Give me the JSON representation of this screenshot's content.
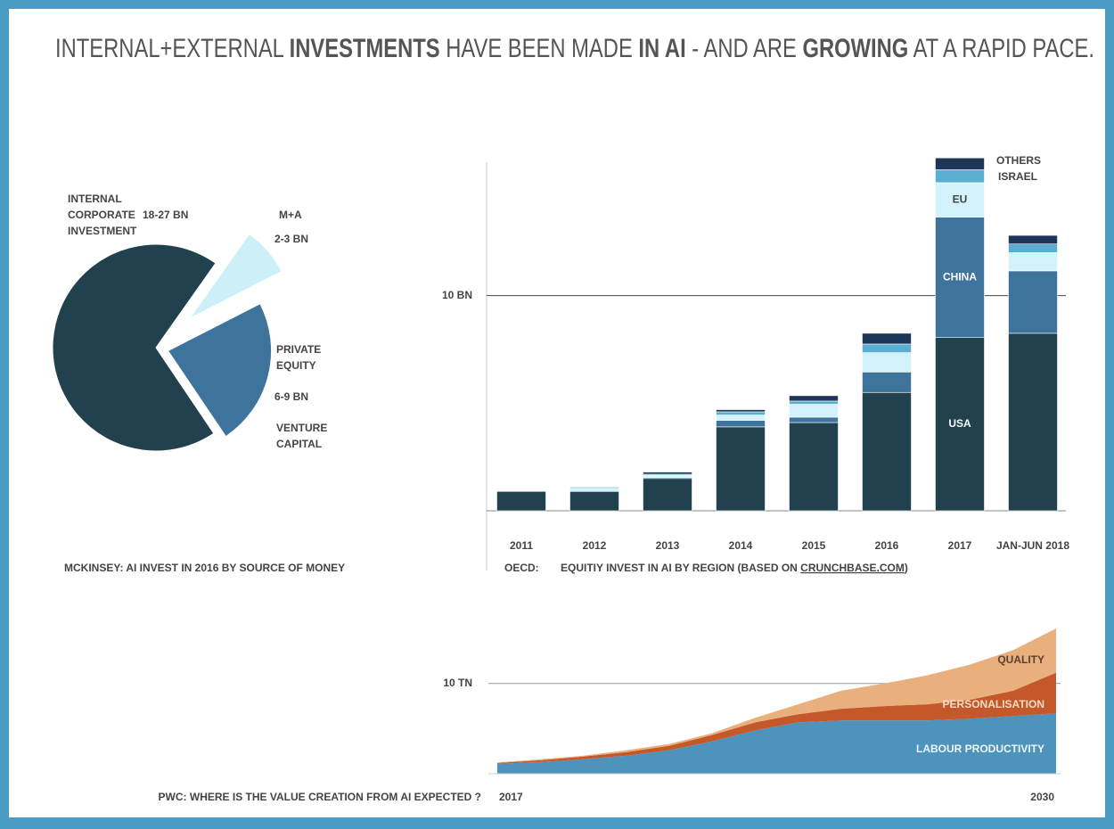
{
  "title": [
    {
      "text": "INTERNAL+EXTERNAL",
      "bold": false
    },
    {
      "text": "INVESTMENTS",
      "bold": true
    },
    {
      "text": "HAVE BEEN MADE",
      "bold": false
    },
    {
      "text": "IN AI",
      "bold": true
    },
    {
      "text": "- AND ARE",
      "bold": false
    },
    {
      "text": "GROWING",
      "bold": true
    },
    {
      "text": "AT A RAPID PACE.",
      "bold": false
    }
  ],
  "chart_data": [
    {
      "type": "pie",
      "categories": [
        "INTERNAL CORPORATE INVESTMENT",
        "M+A",
        "PRIVATE EQUITY"
      ],
      "values": [
        22.5,
        2.5,
        7.5
      ],
      "value_labels": [
        "18-27 BN",
        "2-3 BN",
        "6-9 BN"
      ],
      "colors": [
        "#21414f",
        "#cdeff8",
        "#3e739c"
      ],
      "annotations": [
        "VENTURE CAPITAL"
      ],
      "caption": "MCKINSEY: AI INVEST IN 2016 BY SOURCE OF MONEY"
    },
    {
      "type": "bar",
      "stacked": true,
      "categories": [
        "2011",
        "2012",
        "2013",
        "2014",
        "2015",
        "2016",
        "2017",
        "JAN-JUN 2018"
      ],
      "series": [
        {
          "name": "USA",
          "color": "#21414f",
          "values": [
            0.9,
            0.9,
            1.5,
            3.9,
            4.1,
            5.5,
            8.05,
            8.25
          ]
        },
        {
          "name": "CHINA",
          "color": "#3e739c",
          "values": [
            0,
            0,
            0.05,
            0.3,
            0.25,
            0.95,
            5.6,
            2.9
          ]
        },
        {
          "name": "EU",
          "color": "#d3f2fb",
          "values": [
            0,
            0.15,
            0.1,
            0.25,
            0.6,
            0.9,
            1.6,
            0.85
          ]
        },
        {
          "name": "ISRAEL",
          "color": "#5aaed0",
          "values": [
            0,
            0.05,
            0.05,
            0.15,
            0.15,
            0.4,
            0.6,
            0.4
          ]
        },
        {
          "name": "OTHERS",
          "color": "#1d3557",
          "values": [
            0,
            0,
            0.1,
            0.1,
            0.25,
            0.5,
            0.55,
            0.4
          ]
        }
      ],
      "ylim": [
        0,
        16.2
      ],
      "yticks": [
        {
          "value": 10,
          "label": "10 BN"
        }
      ],
      "grid": true,
      "source": "OECD:",
      "caption": [
        "EQUITIY INVEST IN AI BY REGION (BASED ON",
        "CRUNCHBASE.COM",
        ")"
      ]
    },
    {
      "type": "area",
      "stacked": true,
      "x": [
        2017,
        2018,
        2019,
        2020,
        2021,
        2022,
        2023,
        2024,
        2025,
        2026,
        2027,
        2028,
        2029,
        2030
      ],
      "xlim": [
        2017,
        2030
      ],
      "xticks": [
        2017,
        2030
      ],
      "series": [
        {
          "name": "LABOUR PRODUCTIVITY",
          "color": "#4d93bb",
          "values": [
            1.1,
            1.3,
            1.6,
            2.0,
            2.6,
            3.6,
            4.8,
            5.7,
            5.9,
            5.9,
            5.9,
            6.1,
            6.4,
            6.7
          ]
        },
        {
          "name": "PERSONALISATION",
          "color": "#c4582a",
          "values": [
            0.1,
            0.2,
            0.3,
            0.4,
            0.5,
            0.7,
            0.9,
            0.9,
            1.3,
            1.6,
            1.8,
            2.1,
            2.8,
            4.5
          ]
        },
        {
          "name": "QUALITY",
          "color": "#e9b07e",
          "values": [
            0.05,
            0.1,
            0.1,
            0.2,
            0.2,
            0.2,
            0.5,
            1.1,
            2.0,
            2.5,
            3.2,
            3.9,
            4.5,
            4.9
          ]
        }
      ],
      "ylim": [
        0,
        16.6
      ],
      "yticks": [
        {
          "value": 10,
          "label": "10 TN"
        }
      ],
      "grid": true,
      "caption": "PWC: WHERE IS THE VALUE CREATION FROM AI EXPECTED ?"
    }
  ]
}
